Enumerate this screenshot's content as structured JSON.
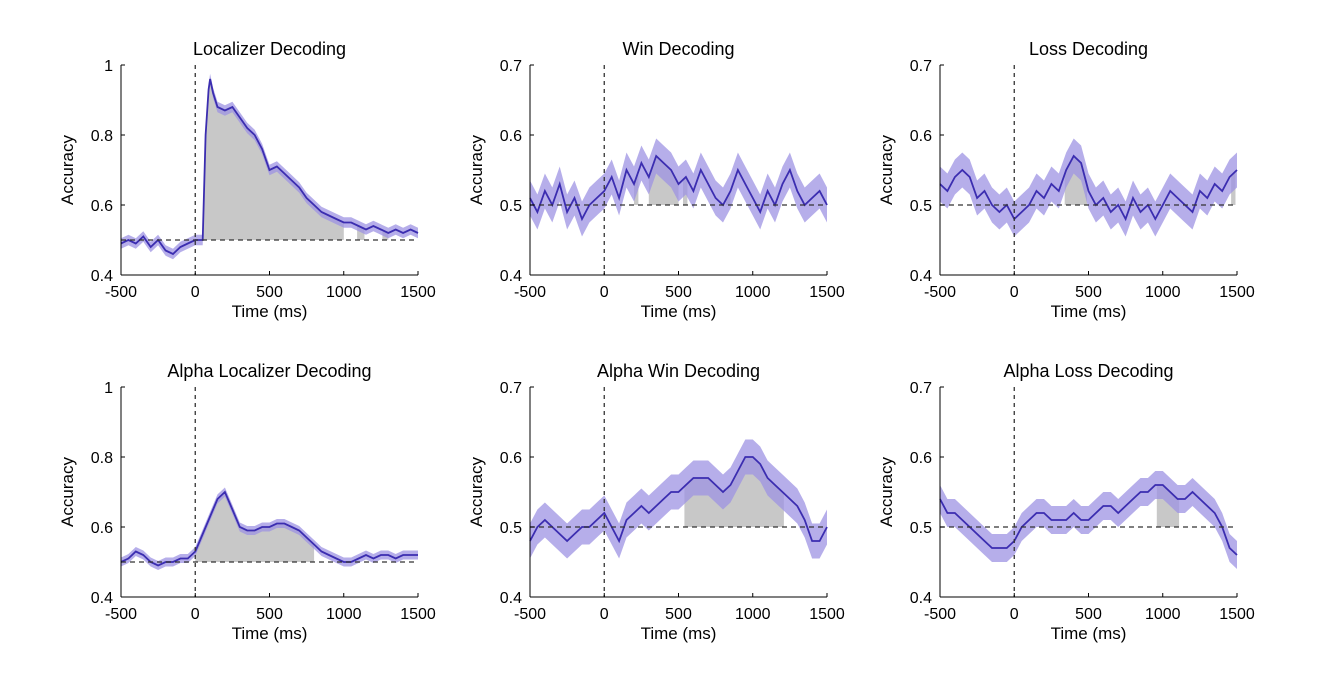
{
  "chart_data": [
    {
      "type": "line",
      "title": "Localizer Decoding",
      "xlabel": "Time (ms)",
      "ylabel": "Accuracy",
      "xlim": [
        -500,
        1500
      ],
      "ylim": [
        0.4,
        1
      ],
      "xticks": [
        "-500",
        "0",
        "500",
        "1000",
        "1500"
      ],
      "yticks": [
        "0.4",
        "0.6",
        "0.8",
        "1"
      ],
      "chance_level": 0.5,
      "line_color": "#3b2db0",
      "band_color": "#9d93e3",
      "sig_color": "#c8c8c8",
      "band_halfwidth": 0.015,
      "series": [
        {
          "x": [
            -500,
            -450,
            -400,
            -350,
            -300,
            -250,
            -200,
            -150,
            -100,
            -50,
            0,
            30,
            50,
            70,
            90,
            100,
            120,
            150,
            200,
            250,
            300,
            350,
            400,
            450,
            500,
            550,
            600,
            650,
            700,
            750,
            800,
            850,
            900,
            950,
            1000,
            1050,
            1100,
            1150,
            1200,
            1250,
            1300,
            1350,
            1400,
            1450,
            1500
          ],
          "values": [
            0.49,
            0.5,
            0.49,
            0.51,
            0.48,
            0.5,
            0.47,
            0.46,
            0.48,
            0.49,
            0.5,
            0.5,
            0.5,
            0.8,
            0.93,
            0.96,
            0.92,
            0.88,
            0.87,
            0.88,
            0.85,
            0.82,
            0.8,
            0.76,
            0.7,
            0.71,
            0.69,
            0.67,
            0.65,
            0.62,
            0.6,
            0.58,
            0.57,
            0.56,
            0.55,
            0.55,
            0.54,
            0.53,
            0.54,
            0.53,
            0.52,
            0.53,
            0.52,
            0.53,
            0.52
          ]
        }
      ],
      "significant": [
        [
          50,
          1000
        ],
        [
          1090,
          1140
        ],
        [
          1260,
          1300
        ]
      ]
    },
    {
      "type": "line",
      "title": "Win Decoding",
      "xlabel": "Time (ms)",
      "ylabel": "Accuracy",
      "xlim": [
        -500,
        1500
      ],
      "ylim": [
        0.4,
        0.7
      ],
      "xticks": [
        "-500",
        "0",
        "500",
        "1000",
        "1500"
      ],
      "yticks": [
        "0.4",
        "0.5",
        "0.6",
        "0.7"
      ],
      "chance_level": 0.5,
      "line_color": "#3b2db0",
      "band_color": "#9d93e3",
      "sig_color": "#c8c8c8",
      "band_halfwidth": 0.025,
      "series": [
        {
          "x": [
            -500,
            -450,
            -400,
            -350,
            -300,
            -250,
            -200,
            -150,
            -100,
            -50,
            0,
            50,
            100,
            150,
            200,
            250,
            300,
            350,
            400,
            450,
            500,
            550,
            600,
            650,
            700,
            750,
            800,
            850,
            900,
            950,
            1000,
            1050,
            1100,
            1150,
            1200,
            1250,
            1300,
            1350,
            1400,
            1450,
            1500
          ],
          "values": [
            0.51,
            0.49,
            0.52,
            0.5,
            0.53,
            0.49,
            0.51,
            0.48,
            0.5,
            0.51,
            0.52,
            0.54,
            0.51,
            0.55,
            0.53,
            0.56,
            0.54,
            0.57,
            0.56,
            0.55,
            0.53,
            0.54,
            0.52,
            0.55,
            0.53,
            0.51,
            0.5,
            0.52,
            0.55,
            0.53,
            0.51,
            0.49,
            0.52,
            0.5,
            0.53,
            0.55,
            0.52,
            0.5,
            0.51,
            0.52,
            0.5
          ]
        }
      ],
      "significant": [
        [
          200,
          230
        ],
        [
          300,
          500
        ],
        [
          530,
          560
        ],
        [
          820,
          850
        ]
      ]
    },
    {
      "type": "line",
      "title": "Loss Decoding",
      "xlabel": "Time (ms)",
      "ylabel": "Accuracy",
      "xlim": [
        -500,
        1500
      ],
      "ylim": [
        0.4,
        0.7
      ],
      "xticks": [
        "-500",
        "0",
        "500",
        "1000",
        "1500"
      ],
      "yticks": [
        "0.4",
        "0.5",
        "0.6",
        "0.7"
      ],
      "chance_level": 0.5,
      "line_color": "#3b2db0",
      "band_color": "#9d93e3",
      "sig_color": "#c8c8c8",
      "band_halfwidth": 0.025,
      "series": [
        {
          "x": [
            -500,
            -450,
            -400,
            -350,
            -300,
            -250,
            -200,
            -150,
            -100,
            -50,
            0,
            50,
            100,
            150,
            200,
            250,
            300,
            350,
            400,
            450,
            500,
            550,
            600,
            650,
            700,
            750,
            800,
            850,
            900,
            950,
            1000,
            1050,
            1100,
            1150,
            1200,
            1250,
            1300,
            1350,
            1400,
            1450,
            1500
          ],
          "values": [
            0.53,
            0.52,
            0.54,
            0.55,
            0.54,
            0.51,
            0.52,
            0.5,
            0.49,
            0.5,
            0.48,
            0.49,
            0.5,
            0.52,
            0.51,
            0.53,
            0.52,
            0.55,
            0.57,
            0.56,
            0.52,
            0.5,
            0.51,
            0.49,
            0.5,
            0.48,
            0.51,
            0.49,
            0.5,
            0.48,
            0.5,
            0.52,
            0.51,
            0.5,
            0.49,
            0.52,
            0.51,
            0.53,
            0.52,
            0.54,
            0.55
          ]
        }
      ],
      "significant": [
        [
          340,
          490
        ],
        [
          1460,
          1490
        ]
      ]
    },
    {
      "type": "line",
      "title": "Alpha Localizer Decoding",
      "xlabel": "Time (ms)",
      "ylabel": "Accuracy",
      "xlim": [
        -500,
        1500
      ],
      "ylim": [
        0.4,
        1
      ],
      "xticks": [
        "-500",
        "0",
        "500",
        "1000",
        "1500"
      ],
      "yticks": [
        "0.4",
        "0.6",
        "0.8",
        "1"
      ],
      "chance_level": 0.5,
      "line_color": "#3b2db0",
      "band_color": "#9d93e3",
      "sig_color": "#c8c8c8",
      "band_halfwidth": 0.013,
      "series": [
        {
          "x": [
            -500,
            -450,
            -400,
            -350,
            -300,
            -250,
            -200,
            -150,
            -100,
            -50,
            0,
            50,
            100,
            150,
            200,
            250,
            300,
            350,
            400,
            450,
            500,
            550,
            600,
            650,
            700,
            750,
            800,
            850,
            900,
            950,
            1000,
            1050,
            1100,
            1150,
            1200,
            1250,
            1300,
            1350,
            1400,
            1450,
            1500
          ],
          "values": [
            0.5,
            0.51,
            0.53,
            0.52,
            0.5,
            0.49,
            0.5,
            0.5,
            0.51,
            0.51,
            0.53,
            0.58,
            0.63,
            0.68,
            0.7,
            0.65,
            0.6,
            0.59,
            0.59,
            0.6,
            0.6,
            0.61,
            0.61,
            0.6,
            0.59,
            0.57,
            0.55,
            0.53,
            0.52,
            0.51,
            0.5,
            0.5,
            0.51,
            0.52,
            0.51,
            0.52,
            0.52,
            0.51,
            0.52,
            0.52,
            0.52
          ]
        }
      ],
      "significant": [
        [
          0,
          800
        ]
      ]
    },
    {
      "type": "line",
      "title": "Alpha Win Decoding",
      "xlabel": "Time (ms)",
      "ylabel": "Accuracy",
      "xlim": [
        -500,
        1500
      ],
      "ylim": [
        0.4,
        0.7
      ],
      "xticks": [
        "-500",
        "0",
        "500",
        "1000",
        "1500"
      ],
      "yticks": [
        "0.4",
        "0.5",
        "0.6",
        "0.7"
      ],
      "chance_level": 0.5,
      "line_color": "#3b2db0",
      "band_color": "#9d93e3",
      "sig_color": "#c8c8c8",
      "band_halfwidth": 0.025,
      "series": [
        {
          "x": [
            -500,
            -450,
            -400,
            -350,
            -300,
            -250,
            -200,
            -150,
            -100,
            -50,
            0,
            50,
            100,
            150,
            200,
            250,
            300,
            350,
            400,
            450,
            500,
            550,
            600,
            650,
            700,
            750,
            800,
            850,
            900,
            950,
            1000,
            1050,
            1100,
            1150,
            1200,
            1250,
            1300,
            1350,
            1400,
            1450,
            1500
          ],
          "values": [
            0.48,
            0.5,
            0.51,
            0.5,
            0.49,
            0.48,
            0.49,
            0.5,
            0.5,
            0.51,
            0.52,
            0.5,
            0.48,
            0.51,
            0.52,
            0.53,
            0.52,
            0.53,
            0.54,
            0.55,
            0.55,
            0.56,
            0.57,
            0.57,
            0.57,
            0.56,
            0.55,
            0.56,
            0.58,
            0.6,
            0.6,
            0.59,
            0.57,
            0.56,
            0.55,
            0.54,
            0.53,
            0.51,
            0.48,
            0.48,
            0.5
          ]
        }
      ],
      "significant": [
        [
          540,
          1210
        ]
      ]
    },
    {
      "type": "line",
      "title": "Alpha Loss Decoding",
      "xlabel": "Time (ms)",
      "ylabel": "Accuracy",
      "xlim": [
        -500,
        1500
      ],
      "ylim": [
        0.4,
        0.7
      ],
      "xticks": [
        "-500",
        "0",
        "500",
        "1000",
        "1500"
      ],
      "yticks": [
        "0.4",
        "0.5",
        "0.6",
        "0.7"
      ],
      "chance_level": 0.5,
      "line_color": "#3b2db0",
      "band_color": "#9d93e3",
      "sig_color": "#c8c8c8",
      "band_halfwidth": 0.02,
      "series": [
        {
          "x": [
            -500,
            -450,
            -400,
            -350,
            -300,
            -250,
            -200,
            -150,
            -100,
            -50,
            0,
            50,
            100,
            150,
            200,
            250,
            300,
            350,
            400,
            450,
            500,
            550,
            600,
            650,
            700,
            750,
            800,
            850,
            900,
            950,
            1000,
            1050,
            1100,
            1150,
            1200,
            1250,
            1300,
            1350,
            1400,
            1450,
            1500
          ],
          "values": [
            0.54,
            0.52,
            0.52,
            0.51,
            0.5,
            0.49,
            0.48,
            0.47,
            0.47,
            0.47,
            0.48,
            0.5,
            0.51,
            0.52,
            0.52,
            0.51,
            0.51,
            0.51,
            0.52,
            0.51,
            0.51,
            0.52,
            0.53,
            0.53,
            0.52,
            0.53,
            0.54,
            0.55,
            0.55,
            0.56,
            0.56,
            0.55,
            0.54,
            0.54,
            0.55,
            0.54,
            0.53,
            0.52,
            0.5,
            0.47,
            0.46
          ]
        }
      ],
      "significant": [
        [
          960,
          1110
        ]
      ]
    }
  ]
}
